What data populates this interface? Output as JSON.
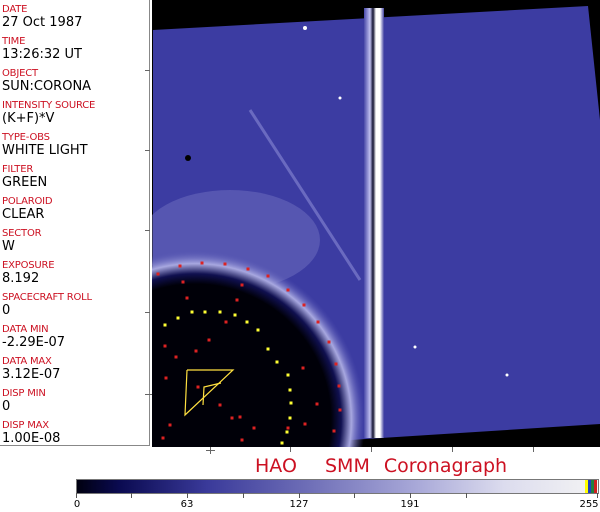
{
  "info_panel": {
    "fields": [
      {
        "label": "DATE",
        "value": "27 Oct 1987"
      },
      {
        "label": "TIME",
        "value": "13:26:32 UT"
      },
      {
        "label": "OBJECT",
        "value": "SUN:CORONA"
      },
      {
        "label": "INTENSITY SOURCE",
        "value": "(K+F)*V"
      },
      {
        "label": "TYPE-OBS",
        "value": "WHITE LIGHT"
      },
      {
        "label": "FILTER",
        "value": "GREEN"
      },
      {
        "label": "POLAROID",
        "value": "CLEAR"
      },
      {
        "label": "SECTOR",
        "value": "W"
      },
      {
        "label": "EXPOSURE",
        "value": "8.192"
      },
      {
        "label": "SPACECRAFT ROLL",
        "value": "0"
      },
      {
        "label": "DATA MIN",
        "value": "-2.29E-07"
      },
      {
        "label": "DATA MAX",
        "value": "3.12E-07"
      },
      {
        "label": "DISP MIN",
        "value": "0"
      },
      {
        "label": "DISP MAX",
        "value": "1.00E-08"
      }
    ]
  },
  "image": {
    "description_colors": {
      "background": "#000000",
      "corona": "#3a3aa0",
      "occulter": "#000008",
      "red_markers": "#dd2222",
      "yellow_markers": "#ffff33"
    }
  },
  "title": "HAO  SMM Coronagraph",
  "colorbar": {
    "tick_labels": [
      "0",
      "63",
      "127",
      "191",
      "255"
    ],
    "end_stripes": [
      "#ffff00",
      "#2040c0",
      "#208040",
      "#cc2020"
    ]
  }
}
